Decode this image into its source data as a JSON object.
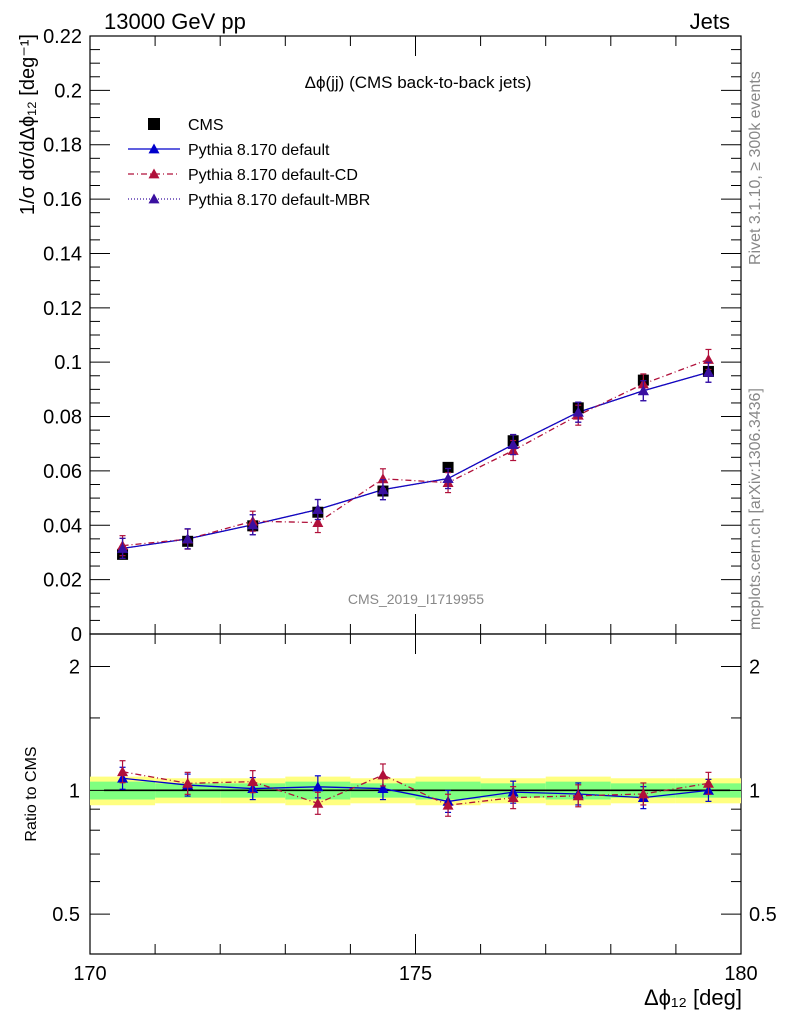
{
  "header": {
    "left": "13000 GeV pp",
    "right": "Jets"
  },
  "side_labels": {
    "rivet": "Rivet 3.1.10, ≥ 300k events",
    "mcplots": "mcplots.cern.ch [arXiv:1306.3436]"
  },
  "colors": {
    "cms": "#000000",
    "default": "#0000cc",
    "cd": "#b0103a",
    "mbr": "#3a10a0",
    "band_yellow": "#ffff80",
    "band_green": "#80ff80"
  },
  "chart_data": [
    {
      "type": "line",
      "title": "Δϕ(jj) (CMS back-to-back jets)",
      "watermark": "CMS_2019_I1719955",
      "ylabel": "1/σ dσ/dΔϕ₁₂ [deg⁻¹]",
      "ylim": [
        0,
        0.22
      ],
      "xlim": [
        170,
        180
      ],
      "yticks": [
        "0",
        "0.02",
        "0.04",
        "0.06",
        "0.08",
        "0.1",
        "0.12",
        "0.14",
        "0.16",
        "0.18",
        "0.2",
        "0.22"
      ],
      "legend_placement": "top-left",
      "x": [
        170.5,
        171.5,
        172.5,
        173.5,
        174.5,
        175.5,
        176.5,
        177.5,
        178.5,
        179.5
      ],
      "series": [
        {
          "name": "CMS",
          "key": "cms",
          "marker": "square",
          "values": [
            0.0293,
            0.0341,
            0.0398,
            0.0448,
            0.0526,
            0.0613,
            0.0711,
            0.0832,
            0.0934,
            0.0966
          ]
        },
        {
          "name": "Pythia 8.170 default",
          "key": "default",
          "marker": "triangle",
          "line": "solid",
          "values": [
            0.0315,
            0.035,
            0.0402,
            0.0458,
            0.0531,
            0.0572,
            0.0697,
            0.0816,
            0.0895,
            0.0963
          ]
        },
        {
          "name": "Pythia 8.170 default-CD",
          "key": "cd",
          "marker": "triangle",
          "line": "dashdot",
          "values": [
            0.0325,
            0.0349,
            0.0415,
            0.041,
            0.0571,
            0.0557,
            0.0675,
            0.0805,
            0.092,
            0.101
          ]
        },
        {
          "name": "Pythia 8.170 default-MBR",
          "key": "mbr",
          "marker": "triangle",
          "line": "dotted",
          "values": [
            0.0315,
            0.035,
            0.0402,
            0.0458,
            0.0531,
            0.0572,
            0.0697,
            0.0816,
            0.0895,
            0.0963
          ]
        }
      ]
    },
    {
      "type": "line",
      "ylabel": "Ratio to CMS",
      "xlabel": "Δϕ₁₂ [deg]",
      "yscale": "log",
      "ylim": [
        0.4,
        2.4
      ],
      "xlim": [
        170,
        180
      ],
      "yticks": [
        "0.5",
        "1",
        "2"
      ],
      "xticks": [
        "170",
        "175",
        "180"
      ],
      "x": [
        170.5,
        171.5,
        172.5,
        173.5,
        174.5,
        175.5,
        176.5,
        177.5,
        178.5,
        179.5
      ],
      "band_yellow": [
        0.92,
        0.93,
        0.93,
        0.92,
        0.93,
        0.92,
        0.93,
        0.92,
        0.93,
        0.93
      ],
      "band_yellow_hi": [
        1.08,
        1.07,
        1.07,
        1.08,
        1.07,
        1.08,
        1.07,
        1.08,
        1.07,
        1.07
      ],
      "band_green": [
        0.95,
        0.96,
        0.96,
        0.95,
        0.96,
        0.95,
        0.96,
        0.95,
        0.96,
        0.96
      ],
      "band_green_hi": [
        1.05,
        1.04,
        1.04,
        1.05,
        1.04,
        1.05,
        1.04,
        1.05,
        1.04,
        1.04
      ],
      "series": [
        {
          "name": "Pythia 8.170 default",
          "key": "default",
          "values": [
            1.07,
            1.03,
            1.01,
            1.02,
            1.01,
            0.94,
            0.99,
            0.98,
            0.96,
            1.0
          ]
        },
        {
          "name": "Pythia 8.170 default-CD",
          "key": "cd",
          "values": [
            1.11,
            1.04,
            1.05,
            0.93,
            1.09,
            0.92,
            0.96,
            0.97,
            0.98,
            1.04
          ]
        }
      ]
    }
  ]
}
